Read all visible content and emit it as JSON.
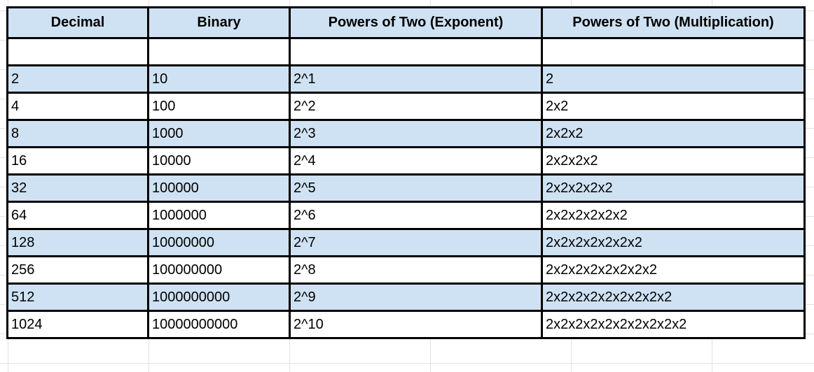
{
  "colors": {
    "header_bg": "#cfe2f3",
    "alt_row_bg": "#cfe2f3",
    "border": "#000000"
  },
  "headers": [
    "Decimal",
    "Binary",
    "Powers of Two (Exponent)",
    "Powers of Two (Multiplication)"
  ],
  "rows": [
    [
      "2",
      "10",
      "2^1",
      "2"
    ],
    [
      "4",
      "100",
      "2^2",
      "2x2"
    ],
    [
      "8",
      "1000",
      "2^3",
      "2x2x2"
    ],
    [
      "16",
      "10000",
      "2^4",
      "2x2x2x2"
    ],
    [
      "32",
      "100000",
      "2^5",
      "2x2x2x2x2"
    ],
    [
      "64",
      "1000000",
      "2^6",
      "2x2x2x2x2x2"
    ],
    [
      "128",
      "10000000",
      "2^7",
      "2x2x2x2x2x2x2"
    ],
    [
      "256",
      "100000000",
      "2^8",
      "2x2x2x2x2x2x2x2"
    ],
    [
      "512",
      "1000000000",
      "2^9",
      "2x2x2x2x2x2x2x2x2"
    ],
    [
      "1024",
      "10000000000",
      "2^10",
      "2x2x2x2x2x2x2x2x2x2"
    ]
  ]
}
